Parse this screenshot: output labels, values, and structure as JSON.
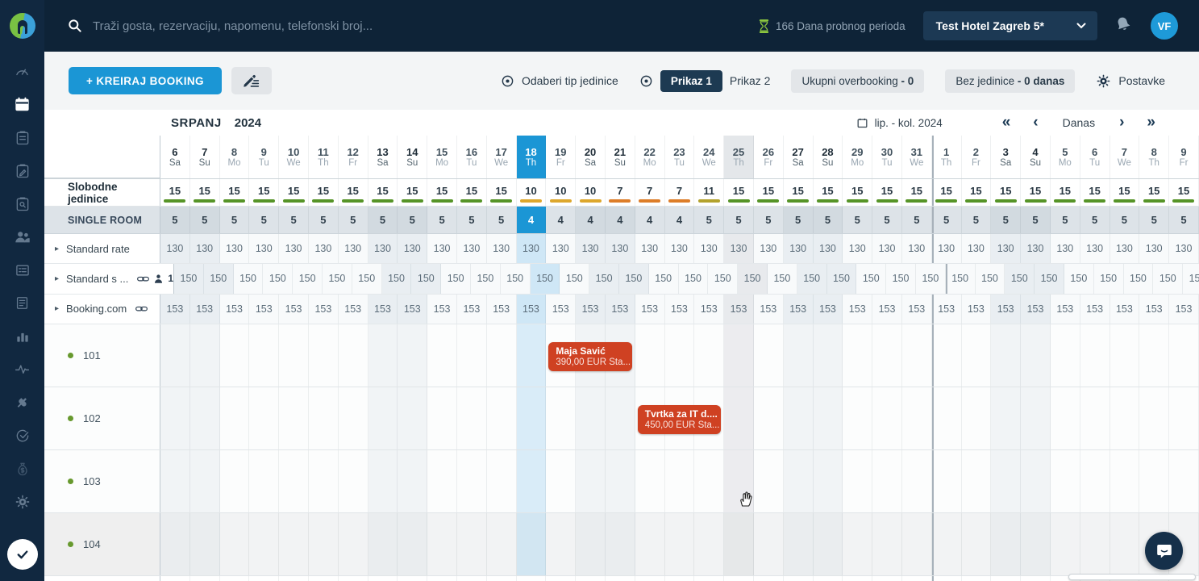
{
  "colors": {
    "accent_blue": "#1b96d5",
    "booking_red": "#cf4122",
    "availability_bars": {
      "15": "#569427",
      "11": "#b3a22d",
      "10": "#dda72c",
      "7": "#dd7d28"
    }
  },
  "topbar": {
    "search_placeholder": "Traži gosta, rezervaciju, napomenu, telefonski broj...",
    "trial_text": "166 Dana probnog perioda",
    "hotel_name": "Test Hotel Zagreb 5*",
    "avatar_initials": "VF"
  },
  "sidebar": {
    "icons": [
      "dashboard-gauge",
      "calendar",
      "clipboard-list",
      "clipboard-edit",
      "clipboard-search",
      "guests",
      "registry-form",
      "invoice-document",
      "bar-chart",
      "activity-pulse",
      "integrations-plug",
      "check-circle",
      "finance-money-bag",
      "settings-gear",
      "onboarding-check"
    ]
  },
  "toolbar": {
    "create_booking_label": "+  KREIRAJ BOOKING",
    "select_unit_type_label": "Odaberi tip jedinice",
    "view1_label": "Prikaz 1",
    "view2_label": "Prikaz 2",
    "overbooking_label": "Ukupni overbooking",
    "overbooking_value": "- 0",
    "no_unit_label": "Bez jedinice",
    "no_unit_value": "- 0 danas",
    "settings_label": "Postavke"
  },
  "calendar": {
    "month_label": "SRPANJ",
    "year_label": "2024",
    "range_label": "lip. - kol. 2024",
    "today_button_label": "Danas",
    "today_index": 12,
    "hover_index": 19,
    "month_break_index": 26,
    "days": [
      {
        "num": "6",
        "dow": "Sa"
      },
      {
        "num": "7",
        "dow": "Su"
      },
      {
        "num": "8",
        "dow": "Mo"
      },
      {
        "num": "9",
        "dow": "Tu"
      },
      {
        "num": "10",
        "dow": "We"
      },
      {
        "num": "11",
        "dow": "Th"
      },
      {
        "num": "12",
        "dow": "Fr"
      },
      {
        "num": "13",
        "dow": "Sa"
      },
      {
        "num": "14",
        "dow": "Su"
      },
      {
        "num": "15",
        "dow": "Mo"
      },
      {
        "num": "16",
        "dow": "Tu"
      },
      {
        "num": "17",
        "dow": "We"
      },
      {
        "num": "18",
        "dow": "Th"
      },
      {
        "num": "19",
        "dow": "Fr"
      },
      {
        "num": "20",
        "dow": "Sa"
      },
      {
        "num": "21",
        "dow": "Su"
      },
      {
        "num": "22",
        "dow": "Mo"
      },
      {
        "num": "23",
        "dow": "Tu"
      },
      {
        "num": "24",
        "dow": "We"
      },
      {
        "num": "25",
        "dow": "Th"
      },
      {
        "num": "26",
        "dow": "Fr"
      },
      {
        "num": "27",
        "dow": "Sa"
      },
      {
        "num": "28",
        "dow": "Su"
      },
      {
        "num": "29",
        "dow": "Mo"
      },
      {
        "num": "30",
        "dow": "Tu"
      },
      {
        "num": "31",
        "dow": "We"
      },
      {
        "num": "1",
        "dow": "Th"
      },
      {
        "num": "2",
        "dow": "Fr"
      },
      {
        "num": "3",
        "dow": "Sa"
      },
      {
        "num": "4",
        "dow": "Su"
      },
      {
        "num": "5",
        "dow": "Mo"
      },
      {
        "num": "6",
        "dow": "Tu"
      },
      {
        "num": "7",
        "dow": "We"
      },
      {
        "num": "8",
        "dow": "Th"
      },
      {
        "num": "9",
        "dow": "Fr"
      }
    ]
  },
  "grid": {
    "availability_label": "Slobodne jedinice",
    "availability_values": [
      15,
      15,
      15,
      15,
      15,
      15,
      15,
      15,
      15,
      15,
      15,
      15,
      10,
      10,
      10,
      7,
      7,
      7,
      11,
      15,
      15,
      15,
      15,
      15,
      15,
      15,
      15,
      15,
      15,
      15,
      15,
      15,
      15,
      15,
      15
    ],
    "unit_type_label": "SINGLE ROOM",
    "unit_values": [
      5,
      5,
      5,
      5,
      5,
      5,
      5,
      5,
      5,
      5,
      5,
      5,
      4,
      4,
      4,
      4,
      4,
      4,
      5,
      5,
      5,
      5,
      5,
      5,
      5,
      5,
      5,
      5,
      5,
      5,
      5,
      5,
      5,
      5,
      5
    ],
    "rate_rows": [
      {
        "label": "Standard rate",
        "value": "130",
        "icons": []
      },
      {
        "label": "Standard s ...",
        "value": "150",
        "icons": [
          "link",
          "person"
        ],
        "person_count": "1"
      },
      {
        "label": "Booking.com",
        "value": "153",
        "icons": [
          "link"
        ]
      }
    ],
    "rooms": [
      {
        "name": "101"
      },
      {
        "name": "102"
      },
      {
        "name": "103"
      },
      {
        "name": "104"
      }
    ]
  },
  "bookings": [
    {
      "guest": "Maja Savić",
      "price": "390,00 EUR Sta...",
      "room_index": 0,
      "start_index": 13,
      "nights": 3
    },
    {
      "guest": "Tvrtka za IT d....",
      "price": "450,00 EUR Sta...",
      "room_index": 1,
      "start_index": 16,
      "nights": 3
    }
  ]
}
